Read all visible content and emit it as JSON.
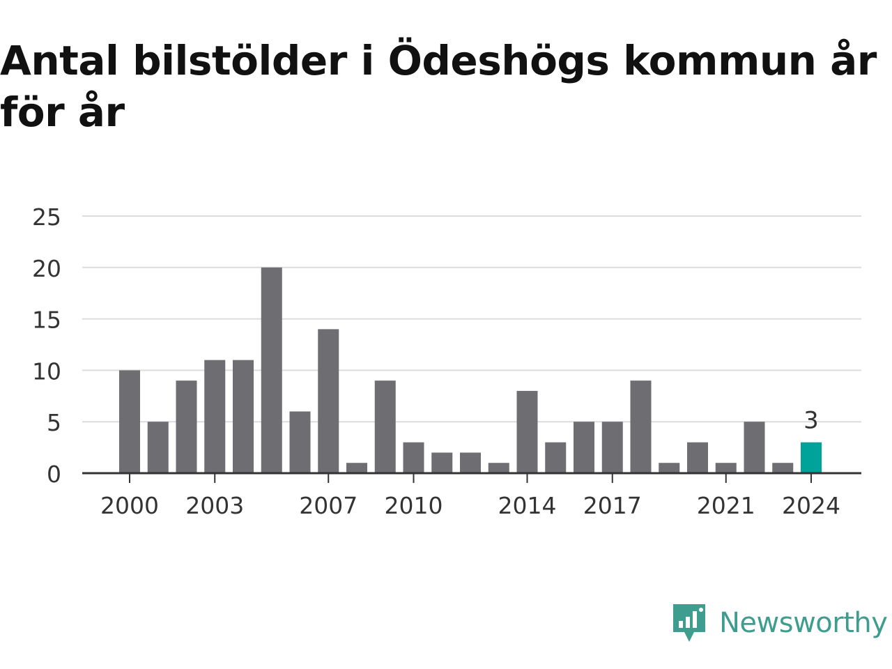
{
  "chart_data": {
    "type": "bar",
    "title": "Antal bilstölder i Ödeshögs kommun år för år",
    "xlabel": "",
    "ylabel": "",
    "categories": [
      2000,
      2001,
      2002,
      2003,
      2004,
      2005,
      2006,
      2007,
      2008,
      2009,
      2010,
      2011,
      2012,
      2013,
      2014,
      2015,
      2016,
      2017,
      2018,
      2019,
      2020,
      2021,
      2022,
      2023,
      2024
    ],
    "values": [
      10,
      5,
      9,
      11,
      11,
      20,
      6,
      14,
      1,
      9,
      3,
      2,
      2,
      1,
      8,
      3,
      5,
      5,
      9,
      1,
      3,
      1,
      5,
      1,
      3
    ],
    "x_tick_labels": [
      "2000",
      "2003",
      "2007",
      "2010",
      "2014",
      "2017",
      "2021",
      "2024"
    ],
    "y_ticks": [
      0,
      5,
      10,
      15,
      20,
      25
    ],
    "ylim": [
      0,
      25
    ],
    "grid": true,
    "highlight": {
      "category": 2024,
      "label": "3"
    },
    "colors": {
      "bar": "#6d6d72",
      "highlight": "#00a39a",
      "grid": "#dcdcdc",
      "axis": "#333333"
    }
  },
  "brand": {
    "name": "Newsworthy",
    "logo_icon": "newsworthy-chart-bubble-icon",
    "color": "#3e9d8e"
  }
}
